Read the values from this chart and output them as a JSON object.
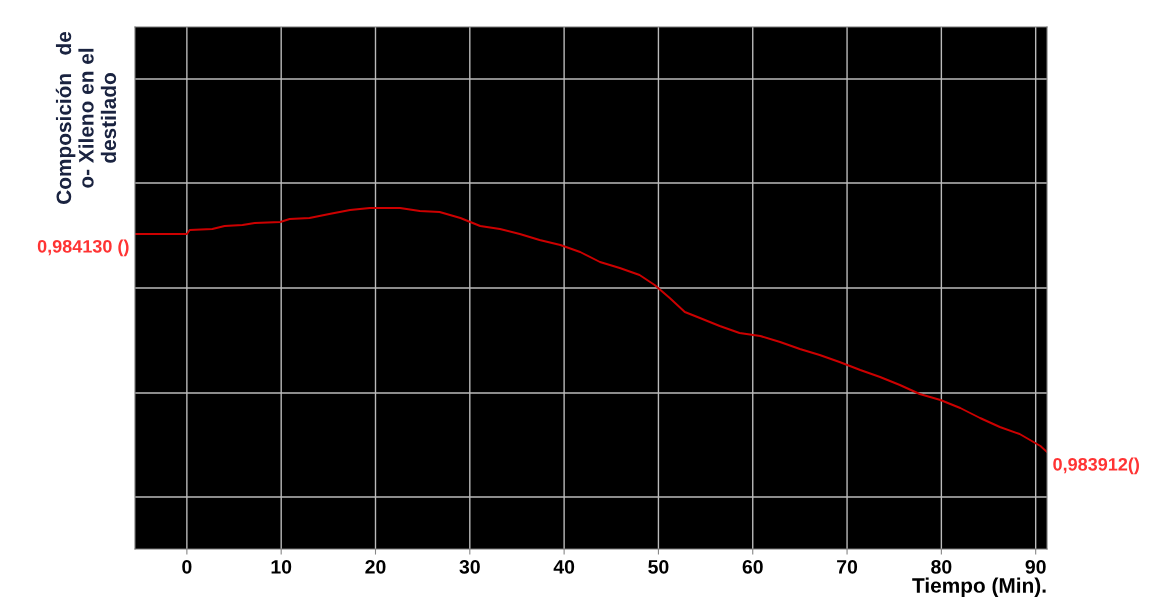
{
  "chart_data": {
    "type": "line",
    "xlabel": "Tiempo (Min).",
    "ylabel": "Composición   de\no- Xileno en el\ndestilado",
    "x": [
      -5.5,
      0,
      0.3,
      2.7,
      4.0,
      5.9,
      7.2,
      9.9,
      10.9,
      13.0,
      15.1,
      17.3,
      19.4,
      22.6,
      24.7,
      26.8,
      29.0,
      31.1,
      33.2,
      35.3,
      37.4,
      39.6,
      41.7,
      43.8,
      45.9,
      48.0,
      49.6,
      51.2,
      52.8,
      54.4,
      56.5,
      58.6,
      60.8,
      62.9,
      65.0,
      67.1,
      69.2,
      71.4,
      73.5,
      75.6,
      77.7,
      79.9,
      82.0,
      84.1,
      86.2,
      88.3,
      90.5,
      91.2
    ],
    "series": [
      {
        "color": "#cc0000",
        "values": [
          0.98413,
          0.98413,
          0.984134,
          0.984135,
          0.984138,
          0.984139,
          0.984141,
          0.984142,
          0.984145,
          0.984146,
          0.98415,
          0.984154,
          0.984156,
          0.984156,
          0.984153,
          0.984152,
          0.984146,
          0.984138,
          0.984135,
          0.98413,
          0.984124,
          0.984119,
          0.984112,
          0.984102,
          0.984096,
          0.984089,
          0.984079,
          0.984066,
          0.984052,
          0.984046,
          0.984038,
          0.984031,
          0.984028,
          0.984022,
          0.984015,
          0.984009,
          0.984002,
          0.983994,
          0.983987,
          0.983979,
          0.98397,
          0.983964,
          0.983956,
          0.983946,
          0.983937,
          0.98393,
          0.983918,
          0.983912
        ],
        "value_labels": [
          "0,984130 ()",
          null,
          null,
          null,
          null,
          null,
          null,
          null,
          null,
          null,
          null,
          null,
          null,
          null,
          null,
          null,
          null,
          null,
          null,
          null,
          null,
          null,
          null,
          null,
          null,
          null,
          null,
          null,
          null,
          null,
          null,
          null,
          null,
          null,
          null,
          null,
          null,
          null,
          null,
          null,
          null,
          null,
          null,
          null,
          null,
          null,
          null,
          "0,983912()"
        ]
      }
    ],
    "xlim": [
      -5.5,
      91.2
    ],
    "xticks": [
      0,
      10,
      20,
      30,
      40,
      50,
      60,
      70,
      80,
      90
    ],
    "ylim": [
      0.983815,
      0.984337
    ],
    "yticks": [
      {
        "value": 0.983867,
        "label": null
      },
      {
        "value": 0.983971,
        "label": null
      },
      {
        "value": 0.984076,
        "label": null
      },
      {
        "value": 0.984181,
        "label": null
      },
      {
        "value": 0.984285,
        "label": null
      }
    ],
    "grid": true,
    "tick_labels": "x"
  }
}
